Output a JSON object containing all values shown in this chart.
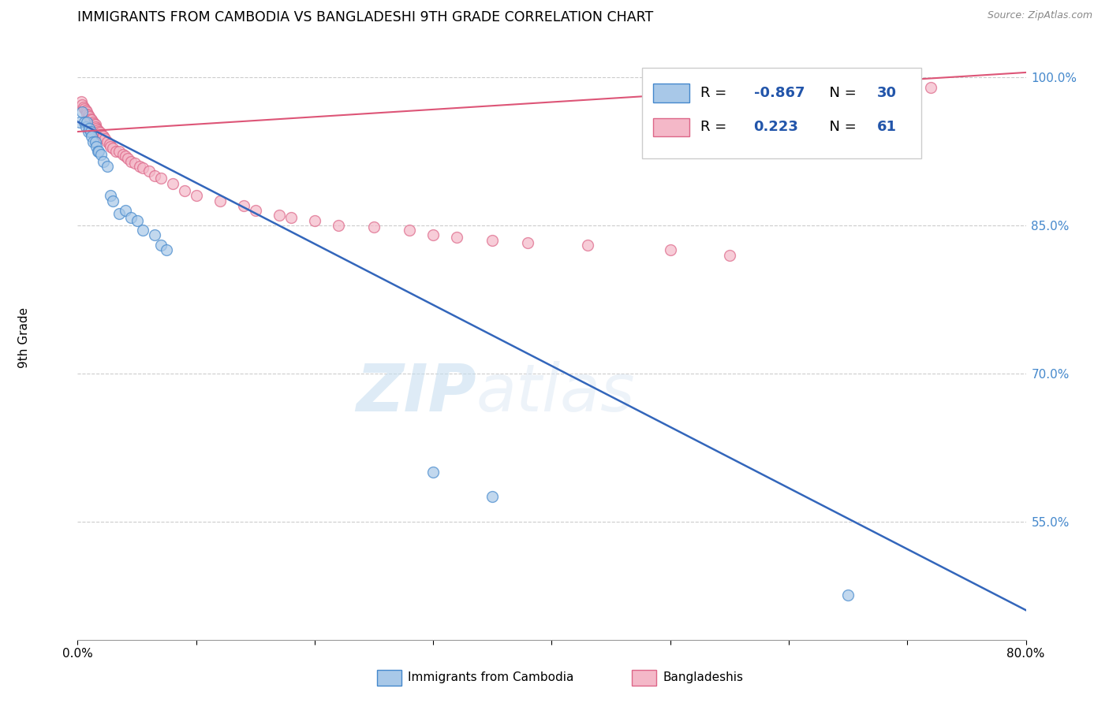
{
  "title": "IMMIGRANTS FROM CAMBODIA VS BANGLADESHI 9TH GRADE CORRELATION CHART",
  "source": "Source: ZipAtlas.com",
  "ylabel": "9th Grade",
  "legend_blue_r": "-0.867",
  "legend_blue_n": "30",
  "legend_pink_r": "0.223",
  "legend_pink_n": "61",
  "blue_color": "#a8c8e8",
  "pink_color": "#f4b8c8",
  "blue_edge_color": "#4488cc",
  "pink_edge_color": "#dd6688",
  "blue_line_color": "#3366bb",
  "pink_line_color": "#dd5577",
  "x_min": 0.0,
  "x_max": 0.8,
  "y_min": 0.43,
  "y_max": 1.025,
  "right_yticks": [
    0.55,
    0.7,
    0.85,
    1.0
  ],
  "xticks": [
    0.0,
    0.1,
    0.2,
    0.3,
    0.4,
    0.5,
    0.6,
    0.7,
    0.8
  ],
  "blue_scatter_x": [
    0.002,
    0.004,
    0.006,
    0.007,
    0.008,
    0.009,
    0.01,
    0.011,
    0.012,
    0.013,
    0.015,
    0.016,
    0.017,
    0.018,
    0.02,
    0.022,
    0.025,
    0.028,
    0.03,
    0.035,
    0.04,
    0.045,
    0.05,
    0.055,
    0.065,
    0.07,
    0.075,
    0.3,
    0.35,
    0.65
  ],
  "blue_scatter_y": [
    0.955,
    0.965,
    0.955,
    0.95,
    0.955,
    0.945,
    0.948,
    0.945,
    0.94,
    0.935,
    0.935,
    0.93,
    0.925,
    0.925,
    0.922,
    0.915,
    0.91,
    0.88,
    0.875,
    0.862,
    0.865,
    0.858,
    0.855,
    0.845,
    0.84,
    0.83,
    0.825,
    0.6,
    0.575,
    0.475
  ],
  "pink_scatter_x": [
    0.003,
    0.004,
    0.005,
    0.006,
    0.007,
    0.008,
    0.008,
    0.009,
    0.01,
    0.011,
    0.012,
    0.013,
    0.014,
    0.015,
    0.015,
    0.016,
    0.017,
    0.018,
    0.019,
    0.02,
    0.021,
    0.022,
    0.023,
    0.025,
    0.027,
    0.028,
    0.03,
    0.032,
    0.035,
    0.038,
    0.04,
    0.042,
    0.045,
    0.048,
    0.052,
    0.055,
    0.06,
    0.065,
    0.07,
    0.08,
    0.09,
    0.1,
    0.12,
    0.14,
    0.15,
    0.17,
    0.18,
    0.2,
    0.22,
    0.25,
    0.28,
    0.3,
    0.32,
    0.35,
    0.38,
    0.43,
    0.5,
    0.55,
    0.65,
    0.68,
    0.72
  ],
  "pink_scatter_y": [
    0.975,
    0.972,
    0.97,
    0.968,
    0.967,
    0.965,
    0.963,
    0.962,
    0.96,
    0.958,
    0.957,
    0.955,
    0.953,
    0.952,
    0.95,
    0.948,
    0.947,
    0.945,
    0.944,
    0.942,
    0.941,
    0.94,
    0.938,
    0.935,
    0.932,
    0.93,
    0.928,
    0.925,
    0.925,
    0.922,
    0.92,
    0.918,
    0.915,
    0.913,
    0.91,
    0.908,
    0.905,
    0.9,
    0.898,
    0.892,
    0.885,
    0.88,
    0.875,
    0.87,
    0.865,
    0.86,
    0.858,
    0.855,
    0.85,
    0.848,
    0.845,
    0.84,
    0.838,
    0.835,
    0.832,
    0.83,
    0.825,
    0.82,
    0.975,
    0.968,
    0.99
  ],
  "blue_trend_x": [
    0.0,
    0.8
  ],
  "blue_trend_y": [
    0.955,
    0.46
  ],
  "pink_trend_x": [
    0.0,
    0.8
  ],
  "pink_trend_y": [
    0.945,
    1.005
  ],
  "watermark_zip": "ZIP",
  "watermark_atlas": "atlas",
  "background_color": "#ffffff",
  "grid_color": "#cccccc",
  "bottom_label_blue": "Immigrants from Cambodia",
  "bottom_label_pink": "Bangladeshis"
}
